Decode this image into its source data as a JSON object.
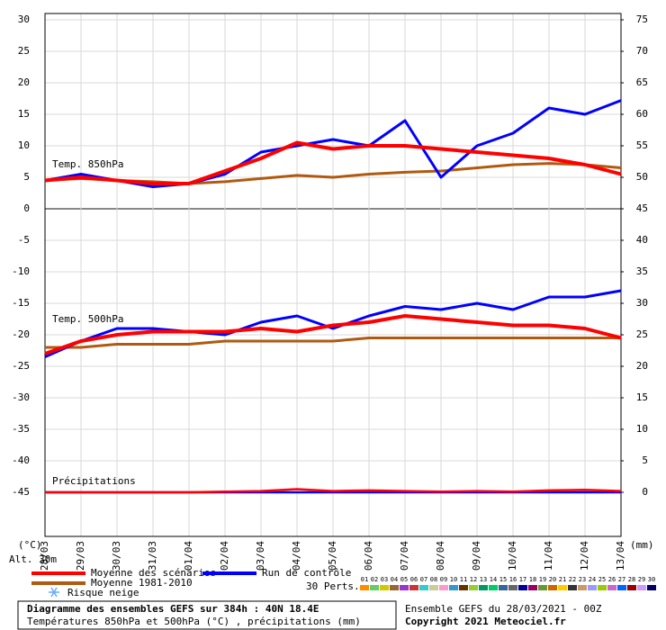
{
  "chart_data": {
    "type": "ensemble",
    "title": "Diagramme des ensembles GEFS sur 384h : 40N 18.4E",
    "subtitle": "Températures 850hPa et 500hPa (°C) , précipitations (mm)",
    "run_label": "Ensemble GEFS du 28/03/2021 - 00Z",
    "copyright": "Copyright 2021 Meteociel.fr",
    "y_label": "(°C)",
    "y2_label": "(mm)",
    "altitude": "Alt. 30m",
    "panel_labels": {
      "t850": "Temp. 850hPa",
      "t500": "Temp. 500hPa",
      "precip": "Précipitations"
    },
    "snow_label": "Risque neige",
    "snow_color": "#66aaff",
    "perts_label": "30 Perts.",
    "x": [
      "28/03",
      "29/03",
      "30/03",
      "31/03",
      "01/04",
      "02/04",
      "03/04",
      "04/04",
      "05/04",
      "06/04",
      "07/04",
      "08/04",
      "09/04",
      "10/04",
      "11/04",
      "12/04",
      "13/04"
    ],
    "ylim": [
      -52,
      31
    ],
    "yticks": [
      30,
      25,
      20,
      15,
      10,
      5,
      0,
      -5,
      -10,
      -15,
      -20,
      -25,
      -30,
      -35,
      -40,
      -45
    ],
    "y2lim": [
      -7,
      76
    ],
    "y2ticks": [
      75,
      70,
      65,
      60,
      55,
      50,
      45,
      40,
      35,
      30,
      25,
      20,
      15,
      10,
      5,
      0
    ],
    "grid": true,
    "series": [
      {
        "name": "Moyenne des scénarios",
        "color": "#ff0000",
        "width": 4,
        "t850": [
          4.5,
          5,
          4.5,
          4,
          4,
          6,
          8,
          10.5,
          9.5,
          10,
          10,
          9.5,
          9,
          8.5,
          8,
          7,
          5.5
        ],
        "t500": [
          -23,
          -21,
          -20,
          -19.5,
          -19.5,
          -19.5,
          -19,
          -19.5,
          -18.5,
          -18,
          -17,
          -17.5,
          -18,
          -18.5,
          -18.5,
          -19,
          -20.5
        ],
        "precip": [
          0,
          0,
          0,
          0,
          0,
          0.1,
          0.2,
          0.5,
          0.2,
          0.3,
          0.2,
          0.1,
          0.2,
          0.1,
          0.3,
          0.4,
          0.2
        ]
      },
      {
        "name": "Run de contrôle",
        "color": "#0000ff",
        "width": 3,
        "t850": [
          4.5,
          5.5,
          4.5,
          3.5,
          4,
          5.5,
          9,
          10,
          11,
          10,
          14,
          5,
          10,
          12,
          16,
          15,
          17.2
        ],
        "t500": [
          -23.5,
          -21,
          -19,
          -19,
          -19.5,
          -20,
          -18,
          -17,
          -19,
          -17,
          -15.5,
          -16,
          -15,
          -16,
          -14,
          -14,
          -13
        ],
        "precip": [
          0,
          0,
          0,
          0,
          0,
          0,
          0,
          0,
          0,
          0,
          0,
          0,
          0,
          0,
          0,
          0,
          0
        ]
      },
      {
        "name": "Moyenne 1981-2010",
        "color": "#b05a10",
        "width": 3,
        "t850": [
          4.5,
          4.8,
          4.5,
          4.3,
          4,
          4.3,
          4.8,
          5.3,
          5,
          5.5,
          5.8,
          6,
          6.5,
          7,
          7.2,
          7,
          6.5
        ],
        "t500": [
          -22,
          -22,
          -21.5,
          -21.5,
          -21.5,
          -21,
          -21,
          -21,
          -21,
          -20.5,
          -20.5,
          -20.5,
          -20.5,
          -20.5,
          -20.5,
          -20.5,
          -20.5
        ]
      }
    ],
    "perturbations": [
      {
        "name": "01",
        "color": "#ff8c00"
      },
      {
        "name": "02",
        "color": "#66cc66"
      },
      {
        "name": "03",
        "color": "#cccc00"
      },
      {
        "name": "04",
        "color": "#996633"
      },
      {
        "name": "05",
        "color": "#9933cc"
      },
      {
        "name": "06",
        "color": "#cc3333"
      },
      {
        "name": "07",
        "color": "#33cccc"
      },
      {
        "name": "08",
        "color": "#cccc99"
      },
      {
        "name": "09",
        "color": "#ff99cc"
      },
      {
        "name": "10",
        "color": "#3399cc"
      },
      {
        "name": "11",
        "color": "#663300"
      },
      {
        "name": "12",
        "color": "#99cc33"
      },
      {
        "name": "13",
        "color": "#009966"
      },
      {
        "name": "14",
        "color": "#00cc66"
      },
      {
        "name": "15",
        "color": "#336699"
      },
      {
        "name": "16",
        "color": "#666666"
      },
      {
        "name": "17",
        "color": "#000099"
      },
      {
        "name": "18",
        "color": "#990066"
      },
      {
        "name": "19",
        "color": "#669933"
      },
      {
        "name": "20",
        "color": "#cc6600"
      },
      {
        "name": "21",
        "color": "#ffcc00"
      },
      {
        "name": "22",
        "color": "#333333"
      },
      {
        "name": "23",
        "color": "#cc9966"
      },
      {
        "name": "24",
        "color": "#9999ff"
      },
      {
        "name": "25",
        "color": "#99cc00"
      },
      {
        "name": "26",
        "color": "#cc66cc"
      },
      {
        "name": "27",
        "color": "#0066ff"
      },
      {
        "name": "28",
        "color": "#990000"
      },
      {
        "name": "29",
        "color": "#cc99ff"
      },
      {
        "name": "30",
        "color": "#000066"
      }
    ]
  }
}
